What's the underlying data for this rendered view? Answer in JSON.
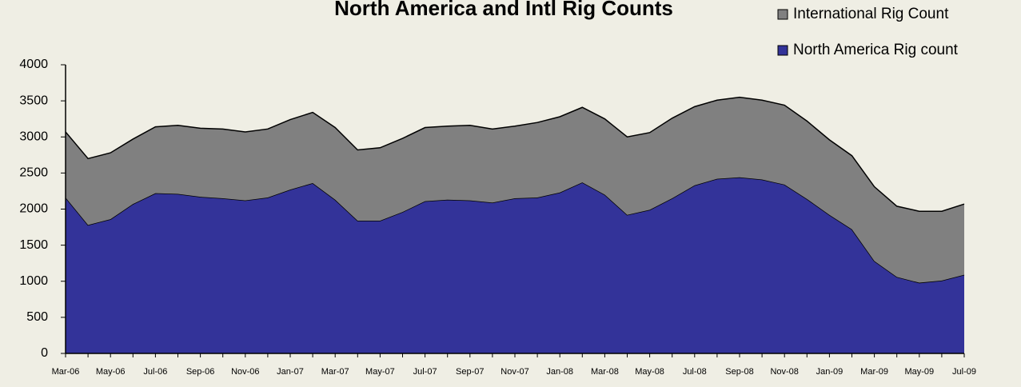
{
  "chart_data": {
    "type": "stacked-area",
    "title": "North America and Intl Rig Counts",
    "categories": [
      "Mar-06",
      null,
      "May-06",
      null,
      "Jul-06",
      null,
      "Sep-06",
      null,
      "Nov-06",
      null,
      "Jan-07",
      null,
      "Mar-07",
      null,
      "May-07",
      null,
      "Jul-07",
      null,
      "Sep-07",
      null,
      "Nov-07",
      null,
      "Jan-08",
      null,
      "Mar-08",
      null,
      "May-08",
      null,
      "Jul-08",
      null,
      "Sep-08",
      null,
      "Nov-08",
      null,
      "Jan-09",
      null,
      "Mar-09",
      null,
      "May-09",
      null,
      "Jul-09"
    ],
    "series": [
      {
        "name": "North America Rig count",
        "color": "#333399",
        "values": [
          2160,
          1780,
          1860,
          2070,
          2220,
          2210,
          2170,
          2150,
          2120,
          2160,
          2270,
          2360,
          2130,
          1840,
          1840,
          1960,
          2110,
          2130,
          2120,
          2090,
          2150,
          2160,
          2230,
          2370,
          2200,
          1920,
          1990,
          2150,
          2330,
          2420,
          2440,
          2410,
          2340,
          2140,
          1920,
          1720,
          1280,
          1060,
          980,
          1010,
          1090
        ]
      },
      {
        "name": "International Rig Count",
        "color": "#808080",
        "values": [
          910,
          920,
          920,
          900,
          920,
          950,
          950,
          960,
          950,
          950,
          970,
          980,
          1000,
          980,
          1010,
          1020,
          1020,
          1020,
          1040,
          1020,
          1000,
          1040,
          1050,
          1040,
          1050,
          1080,
          1070,
          1110,
          1090,
          1090,
          1110,
          1100,
          1100,
          1080,
          1040,
          1020,
          1030,
          980,
          990,
          960,
          980
        ]
      }
    ],
    "ylim": [
      0,
      4000
    ],
    "yticks": [
      0,
      500,
      1000,
      1500,
      2000,
      2500,
      3000,
      3500,
      4000
    ],
    "legend": "top-right",
    "grid": false
  }
}
